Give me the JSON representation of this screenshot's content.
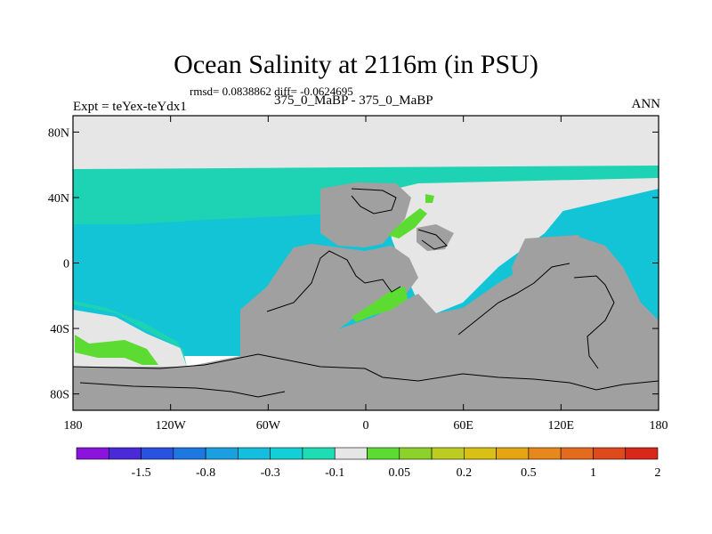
{
  "title": "Ocean Salinity at 2116m (in PSU)",
  "stats": "rmsd= 0.0838862 diff= -0.0624695",
  "left_label": "Expt = teYex-teYdx1",
  "center_label": "375_0_MaBP - 375_0_MaBP",
  "right_label": "ANN",
  "map": {
    "lon_range": [
      -180,
      180
    ],
    "lat_range": [
      -90,
      90
    ],
    "x_ticks": [
      {
        "value": -180,
        "label": "180"
      },
      {
        "value": -120,
        "label": "120W"
      },
      {
        "value": -60,
        "label": "60W"
      },
      {
        "value": 0,
        "label": "0"
      },
      {
        "value": 60,
        "label": "60E"
      },
      {
        "value": 120,
        "label": "120E"
      },
      {
        "value": 180,
        "label": "180"
      }
    ],
    "y_ticks": [
      {
        "value": 80,
        "label": "80N"
      },
      {
        "value": 40,
        "label": "40N"
      },
      {
        "value": 0,
        "label": "0"
      },
      {
        "value": -40,
        "label": "40S"
      },
      {
        "value": -80,
        "label": "80S"
      }
    ],
    "colors": {
      "land": "#a0a0a0",
      "near_zero": "#e6e6e6",
      "light_cyan": "#1ed2b4",
      "cyan": "#12c4d6",
      "green": "#5cdc32",
      "coast": "#000000"
    }
  },
  "colorbar": {
    "colors": [
      "#8a14dc",
      "#4a2ad8",
      "#2a52e0",
      "#1e78e2",
      "#1aa0e0",
      "#14bede",
      "#12cfd8",
      "#1edcb4",
      "#e6e6e6",
      "#5cdc32",
      "#8cd22a",
      "#bccc20",
      "#d8c014",
      "#e6a612",
      "#e6881a",
      "#e46a1e",
      "#de4a1c",
      "#d8281a"
    ],
    "labels": [
      "-1.5",
      "-0.8",
      "-0.3",
      "-0.1",
      "0.05",
      "0.2",
      "0.5",
      "1",
      "2"
    ]
  }
}
